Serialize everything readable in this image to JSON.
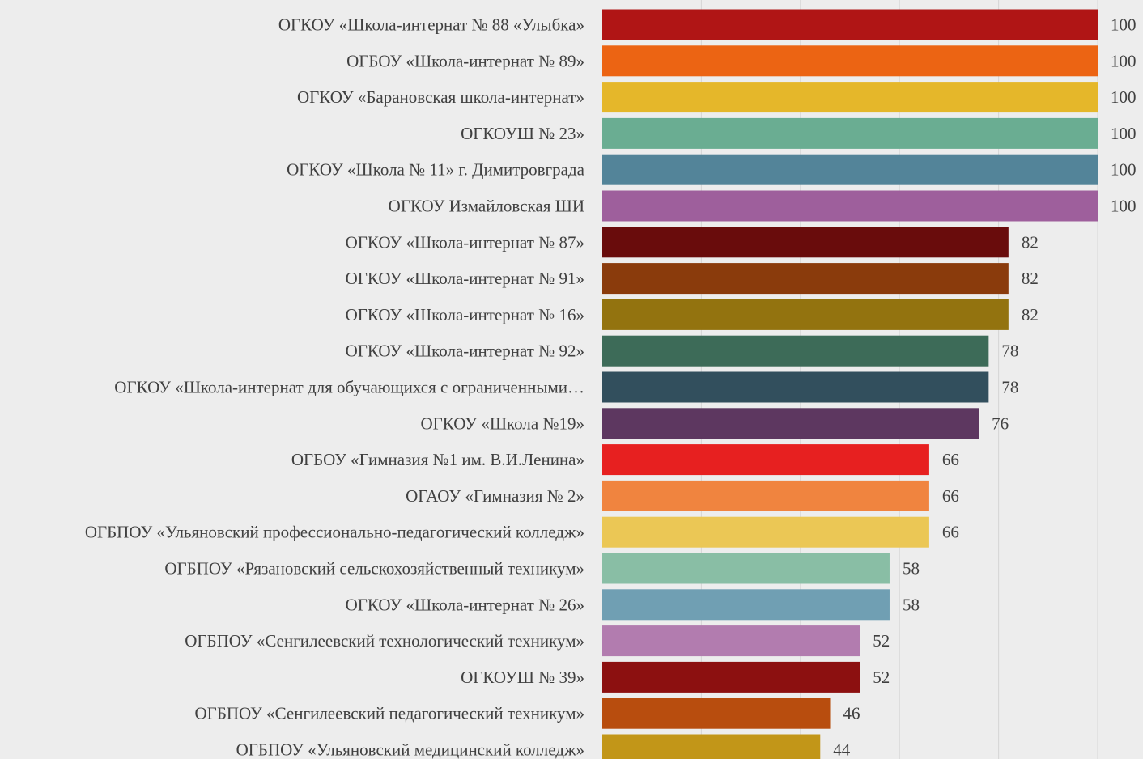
{
  "chart_data": {
    "type": "bar",
    "orientation": "horizontal",
    "categories": [
      "ОГКОУ «Школа-интернат № 88 «Улыбка»",
      "ОГБОУ «Школа-интернат № 89»",
      "ОГКОУ «Барановская школа-интернат»",
      "ОГКОУШ № 23»",
      "ОГКОУ «Школа № 11» г. Димитровграда",
      "ОГКОУ Измайловская ШИ",
      "ОГКОУ «Школа-интернат № 87»",
      "ОГКОУ «Школа-интернат № 91»",
      "ОГКОУ «Школа-интернат № 16»",
      "ОГКОУ «Школа-интернат № 92»",
      "ОГКОУ «Школа-интернат для обучающихся с ограниченными…",
      "ОГКОУ «Школа №19»",
      "ОГБОУ «Гимназия №1 им. В.И.Ленина»",
      "ОГАОУ «Гимназия № 2»",
      "ОГБПОУ «Ульяновский профессионально-педагогический колледж»",
      "ОГБПОУ «Рязановский сельскохозяйственный техникум»",
      "ОГКОУ «Школа-интернат № 26»",
      "ОГБПОУ «Сенгилеевский технологический техникум»",
      "ОГКОУШ № 39»",
      "ОГБПОУ «Сенгилеевский педагогический техникум»",
      "ОГБПОУ «Ульяновский медицинский колледж»"
    ],
    "values": [
      100,
      100,
      100,
      100,
      100,
      100,
      82,
      82,
      82,
      78,
      78,
      76,
      66,
      66,
      66,
      58,
      58,
      52,
      52,
      46,
      44
    ],
    "colors": [
      "#b01515",
      "#ec6413",
      "#e5b72a",
      "#6aad92",
      "#538499",
      "#9e5f9c",
      "#690c0c",
      "#8a3b0c",
      "#93730f",
      "#3d6b58",
      "#324f5d",
      "#5d3760",
      "#e72020",
      "#f0843f",
      "#ebc755",
      "#89bea5",
      "#709fb3",
      "#b27caf",
      "#8c1010",
      "#b84d0e",
      "#c29618"
    ],
    "xlim": [
      0,
      100
    ],
    "grid": true,
    "legend": "none",
    "title": "",
    "xlabel": "",
    "ylabel": ""
  }
}
